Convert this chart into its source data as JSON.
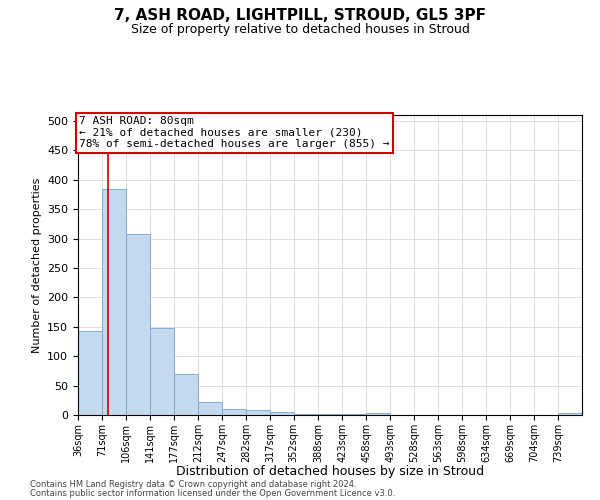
{
  "title_line1": "7, ASH ROAD, LIGHTPILL, STROUD, GL5 3PF",
  "title_line2": "Size of property relative to detached houses in Stroud",
  "xlabel": "Distribution of detached houses by size in Stroud",
  "ylabel": "Number of detached properties",
  "bin_labels": [
    "36sqm",
    "71sqm",
    "106sqm",
    "141sqm",
    "177sqm",
    "212sqm",
    "247sqm",
    "282sqm",
    "317sqm",
    "352sqm",
    "388sqm",
    "423sqm",
    "458sqm",
    "493sqm",
    "528sqm",
    "563sqm",
    "598sqm",
    "634sqm",
    "669sqm",
    "704sqm",
    "739sqm"
  ],
  "bin_edges": [
    36,
    71,
    106,
    141,
    177,
    212,
    247,
    282,
    317,
    352,
    388,
    423,
    458,
    493,
    528,
    563,
    598,
    634,
    669,
    704,
    739
  ],
  "bin_width": 35,
  "bar_heights": [
    143,
    385,
    307,
    148,
    69,
    22,
    10,
    8,
    5,
    2,
    1,
    1,
    4,
    0,
    0,
    0,
    0,
    0,
    0,
    0,
    4
  ],
  "bar_color": "#c5d9ee",
  "bar_edge_color": "#6aaad4",
  "grid_color": "#d0d0d0",
  "background_color": "#ffffff",
  "annotation_line1": "7 ASH ROAD: 80sqm",
  "annotation_line2": "← 21% of detached houses are smaller (230)",
  "annotation_line3": "78% of semi-detached houses are larger (855) →",
  "vline_x": 80,
  "vline_color": "#cc0000",
  "box_edgecolor": "#cc0000",
  "ylim": [
    0,
    510
  ],
  "yticks": [
    0,
    50,
    100,
    150,
    200,
    250,
    300,
    350,
    400,
    450,
    500
  ],
  "footer_line1": "Contains HM Land Registry data © Crown copyright and database right 2024.",
  "footer_line2": "Contains public sector information licensed under the Open Government Licence v3.0."
}
